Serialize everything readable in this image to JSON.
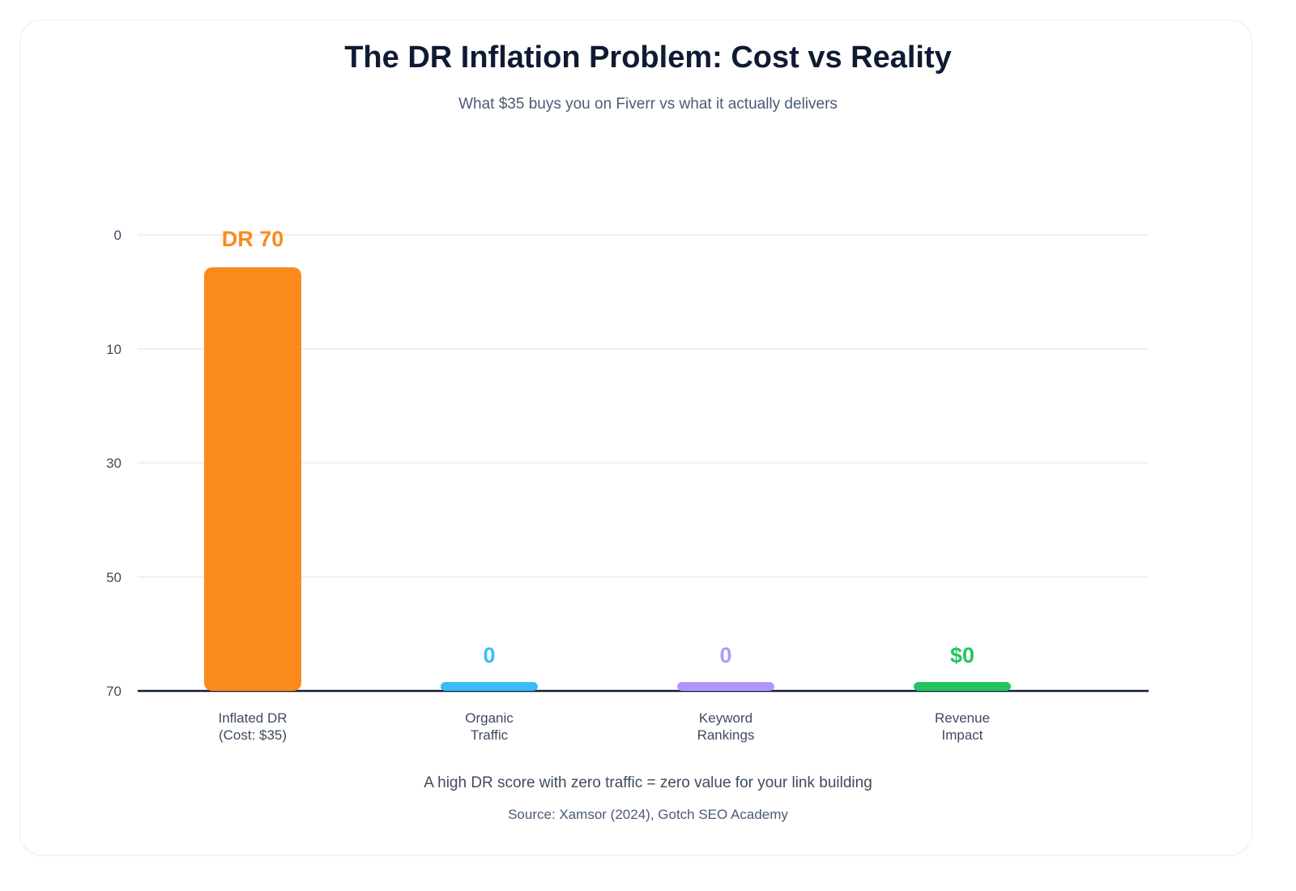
{
  "header": {
    "title": "The DR Inflation Problem: Cost vs Reality",
    "subtitle": "What $35 buys you on Fiverr vs what it actually delivers"
  },
  "chart_data": {
    "type": "bar",
    "title": "The DR Inflation Problem: Cost vs Reality",
    "xlabel": "",
    "ylabel": "",
    "y_axis_reversed": true,
    "ylim": [
      0,
      70
    ],
    "yticks": [
      "0",
      "10",
      "30",
      "50",
      "70"
    ],
    "grid": true,
    "categories": [
      [
        "Inflated DR",
        "(Cost: $35)"
      ],
      [
        "Organic",
        "Traffic"
      ],
      [
        "Keyword",
        "Rankings"
      ],
      [
        "Revenue",
        "Impact"
      ]
    ],
    "values": [
      70,
      0,
      0,
      0
    ],
    "data_labels": [
      "DR 70",
      "0",
      "0",
      "$0"
    ],
    "colors": [
      "#fb8a1c",
      "#38bdf8",
      "#b197fc",
      "#22c55e"
    ]
  },
  "footer": {
    "note": "A high DR score with zero traffic = zero value for your link building",
    "source": "Source: Xamsor (2024), Gotch SEO Academy"
  }
}
